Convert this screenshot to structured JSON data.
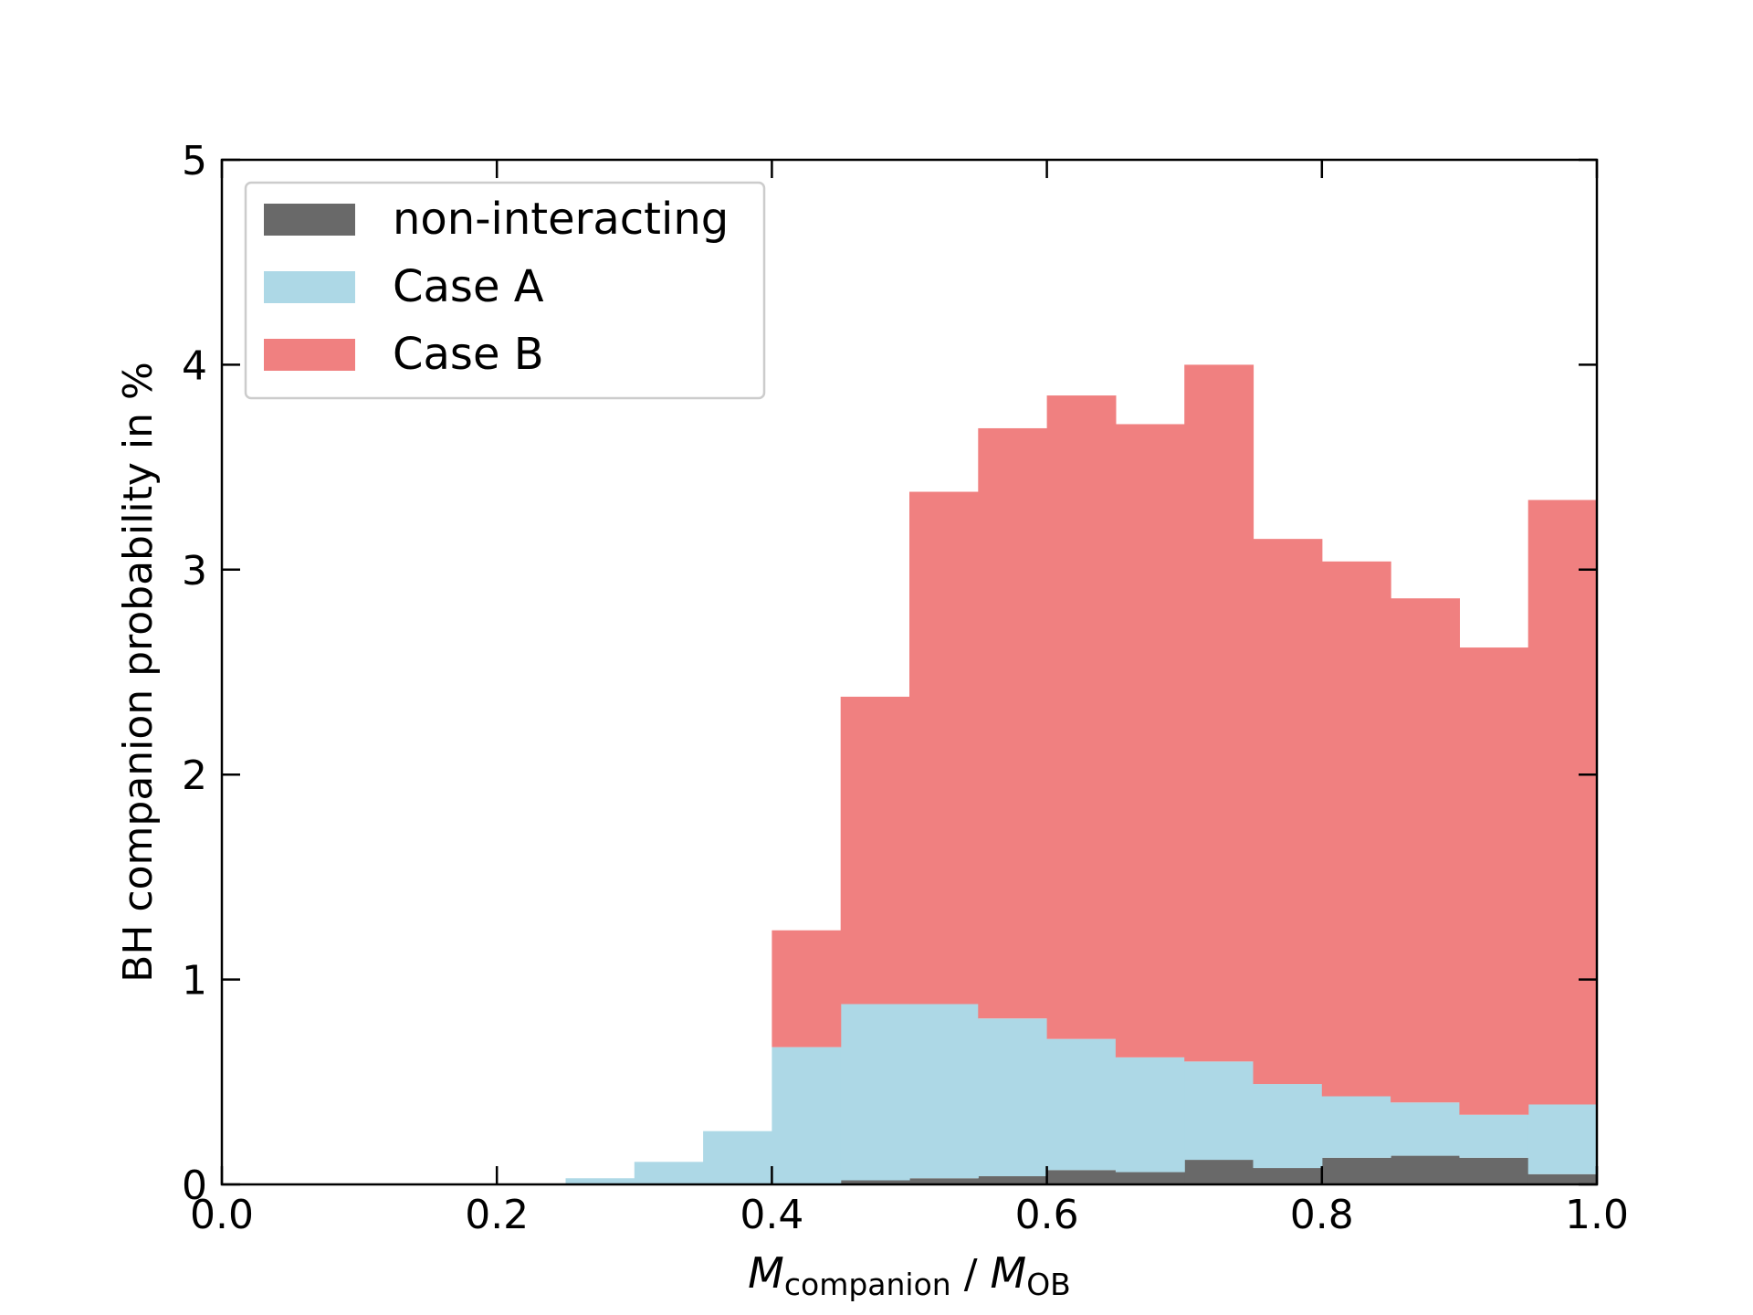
{
  "chart_data": {
    "type": "bar",
    "stacked": true,
    "xlim": [
      0.0,
      1.0
    ],
    "ylim": [
      0,
      5
    ],
    "x_ticks": [
      "0.0",
      "0.2",
      "0.4",
      "0.6",
      "0.8",
      "1.0"
    ],
    "y_ticks": [
      "0",
      "1",
      "2",
      "3",
      "4",
      "5"
    ],
    "xlabel": {
      "main": "M",
      "sub": "companion",
      "sep": " / ",
      "main2": "M",
      "sub2": "OB"
    },
    "ylabel": "BH companion probability in %",
    "bin_edges": [
      0.25,
      0.3,
      0.35,
      0.4,
      0.45,
      0.5,
      0.55,
      0.6,
      0.65,
      0.7,
      0.75,
      0.8,
      0.85,
      0.9,
      0.95,
      1.0
    ],
    "series": [
      {
        "name": "non-interacting",
        "color": "#696969",
        "values": [
          0.0,
          0.0,
          0.0,
          0.0,
          0.02,
          0.03,
          0.04,
          0.07,
          0.06,
          0.12,
          0.08,
          0.13,
          0.14,
          0.13,
          0.05
        ]
      },
      {
        "name": "Case A",
        "color": "#add8e6",
        "values": [
          0.03,
          0.11,
          0.26,
          0.67,
          0.86,
          0.85,
          0.77,
          0.64,
          0.56,
          0.48,
          0.41,
          0.3,
          0.26,
          0.21,
          0.34
        ]
      },
      {
        "name": "Case B",
        "color": "#f08080",
        "values": [
          0.0,
          0.0,
          0.0,
          0.57,
          1.5,
          2.5,
          2.88,
          3.14,
          3.09,
          3.4,
          2.66,
          2.61,
          2.46,
          2.28,
          2.95
        ]
      }
    ],
    "legend": {
      "placement": "top-left",
      "entries": [
        "non-interacting",
        "Case A",
        "Case B"
      ]
    },
    "grid": false
  }
}
